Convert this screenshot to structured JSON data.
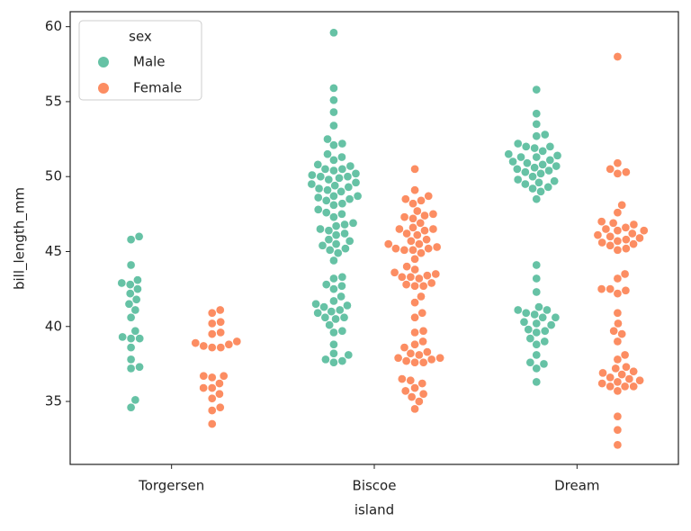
{
  "chart_data": {
    "type": "swarm",
    "categories": [
      "Torgersen",
      "Biscoe",
      "Dream"
    ],
    "x_label": "island",
    "y_label": "bill_length_mm",
    "legend_title": "sex",
    "legend_position": "upper left",
    "ylim": [
      30.8,
      61.0
    ],
    "yticks": [
      35,
      40,
      45,
      50,
      55,
      60
    ],
    "series": [
      {
        "name": "Male",
        "color": "#66c2a5",
        "values": [
          [
            46.0,
            45.8,
            44.1,
            43.1,
            42.9,
            42.8,
            42.5,
            42.2,
            41.8,
            41.5,
            41.1,
            40.6,
            39.7,
            39.3,
            39.2,
            39.2,
            38.6,
            37.8,
            37.3,
            37.2,
            35.1,
            34.6
          ],
          [
            59.6,
            55.9,
            55.1,
            54.3,
            53.4,
            52.5,
            52.2,
            52.1,
            51.5,
            51.3,
            51.1,
            50.8,
            50.7,
            50.5,
            50.5,
            50.4,
            50.2,
            50.1,
            50.0,
            50.0,
            49.9,
            49.8,
            49.6,
            49.5,
            49.4,
            49.3,
            49.2,
            49.1,
            49.0,
            48.7,
            48.7,
            48.6,
            48.5,
            48.4,
            48.2,
            48.1,
            47.8,
            47.6,
            47.5,
            47.3,
            46.9,
            46.8,
            46.7,
            46.5,
            46.4,
            46.2,
            46.1,
            45.8,
            45.7,
            45.5,
            45.4,
            45.2,
            45.1,
            44.9,
            44.4,
            43.3,
            43.2,
            42.8,
            42.7,
            42.5,
            42.0,
            41.7,
            41.5,
            41.4,
            41.3,
            41.1,
            41.0,
            40.9,
            40.6,
            40.6,
            40.5,
            40.1,
            39.7,
            39.6,
            38.8,
            38.2,
            38.1,
            37.8,
            37.7,
            37.6
          ],
          [
            55.8,
            54.2,
            53.5,
            52.8,
            52.7,
            52.2,
            52.0,
            52.0,
            51.9,
            51.7,
            51.5,
            51.4,
            51.3,
            51.3,
            51.1,
            51.0,
            50.9,
            50.8,
            50.7,
            50.6,
            50.5,
            50.4,
            50.3,
            50.2,
            50.0,
            49.8,
            49.7,
            49.6,
            49.5,
            49.3,
            49.2,
            49.0,
            48.5,
            44.1,
            43.2,
            42.3,
            41.3,
            41.1,
            41.1,
            40.9,
            40.8,
            40.6,
            40.6,
            40.3,
            40.2,
            40.1,
            39.8,
            39.7,
            39.6,
            39.2,
            39.0,
            38.8,
            38.1,
            37.6,
            37.5,
            37.2,
            36.3
          ]
        ]
      },
      {
        "name": "Female",
        "color": "#fc8d62",
        "values": [
          [
            41.1,
            40.9,
            40.3,
            40.2,
            39.6,
            39.5,
            39.0,
            38.9,
            38.8,
            38.7,
            38.6,
            38.6,
            36.7,
            36.7,
            36.6,
            36.2,
            35.9,
            35.9,
            35.5,
            35.2,
            34.6,
            34.4,
            33.5
          ],
          [
            50.5,
            49.1,
            48.7,
            48.5,
            48.4,
            48.2,
            47.7,
            47.5,
            47.4,
            47.3,
            47.2,
            46.9,
            46.6,
            46.5,
            46.5,
            46.4,
            46.2,
            46.1,
            45.8,
            45.7,
            45.5,
            45.5,
            45.3,
            45.2,
            45.2,
            45.1,
            45.1,
            44.9,
            44.5,
            44.0,
            43.8,
            43.6,
            43.5,
            43.4,
            43.3,
            43.3,
            43.2,
            42.9,
            42.8,
            42.7,
            42.7,
            42.0,
            41.6,
            40.9,
            40.6,
            39.7,
            39.6,
            39.0,
            38.8,
            38.6,
            38.3,
            38.2,
            38.1,
            37.9,
            37.9,
            37.8,
            37.7,
            37.6,
            37.6,
            36.5,
            36.4,
            36.2,
            35.9,
            35.7,
            35.5,
            35.3,
            35.0,
            34.5
          ],
          [
            58.0,
            50.9,
            50.5,
            50.3,
            50.2,
            48.1,
            47.6,
            47.0,
            46.9,
            46.8,
            46.6,
            46.5,
            46.4,
            46.4,
            46.2,
            46.1,
            46.0,
            45.9,
            45.8,
            45.7,
            45.6,
            45.5,
            45.4,
            45.2,
            45.1,
            43.5,
            43.2,
            42.5,
            42.5,
            42.4,
            42.2,
            40.9,
            40.2,
            39.7,
            39.5,
            39.0,
            38.1,
            37.8,
            37.3,
            37.2,
            37.0,
            36.9,
            36.8,
            36.6,
            36.5,
            36.4,
            36.3,
            36.2,
            36.0,
            36.0,
            36.0,
            35.7,
            34.0,
            33.1,
            32.1
          ]
        ]
      }
    ]
  }
}
